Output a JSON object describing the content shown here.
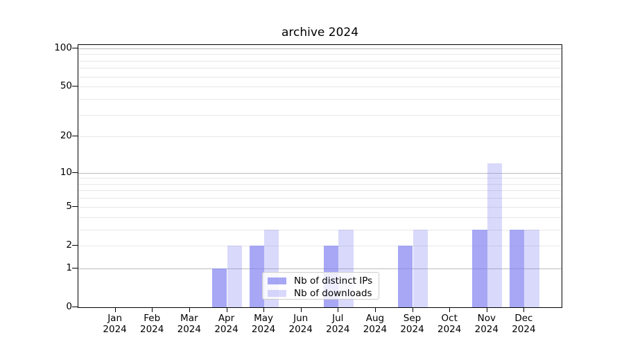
{
  "chart_data": {
    "type": "bar",
    "title": "archive 2024",
    "categories": [
      {
        "month": "Jan",
        "year": "2024"
      },
      {
        "month": "Feb",
        "year": "2024"
      },
      {
        "month": "Mar",
        "year": "2024"
      },
      {
        "month": "Apr",
        "year": "2024"
      },
      {
        "month": "May",
        "year": "2024"
      },
      {
        "month": "Jun",
        "year": "2024"
      },
      {
        "month": "Jul",
        "year": "2024"
      },
      {
        "month": "Aug",
        "year": "2024"
      },
      {
        "month": "Sep",
        "year": "2024"
      },
      {
        "month": "Oct",
        "year": "2024"
      },
      {
        "month": "Nov",
        "year": "2024"
      },
      {
        "month": "Dec",
        "year": "2024"
      }
    ],
    "series": [
      {
        "name": "Nb of distinct IPs",
        "color": "rgba(120,120,240,0.65)",
        "values": [
          0,
          0,
          0,
          1,
          2,
          0,
          2,
          0,
          2,
          0,
          3,
          3
        ]
      },
      {
        "name": "Nb of downloads",
        "color": "rgba(120,120,240,0.28)",
        "values": [
          0,
          0,
          0,
          2,
          3,
          0,
          3,
          0,
          3,
          0,
          12,
          3
        ]
      }
    ],
    "yscale": "log1p",
    "ylim": [
      0,
      106
    ],
    "yticks": [
      {
        "value": 0,
        "label": "0"
      },
      {
        "value": 1,
        "label": "1"
      },
      {
        "value": 2,
        "label": "2"
      },
      {
        "value": 5,
        "label": "5"
      },
      {
        "value": 10,
        "label": "10"
      },
      {
        "value": 20,
        "label": "20"
      },
      {
        "value": 50,
        "label": "50"
      },
      {
        "value": 100,
        "label": "100"
      }
    ],
    "grid": {
      "major_values": [
        1,
        10,
        100
      ],
      "minor_values": [
        2,
        3,
        4,
        5,
        6,
        7,
        8,
        9,
        20,
        30,
        40,
        50,
        60,
        70,
        80,
        90
      ],
      "major_color": "#bcbcbc",
      "minor_color": "#e7e7e7"
    },
    "legend": {
      "position": "lower-center"
    },
    "colors": {
      "spine": "#000000",
      "background": "#ffffff",
      "text": "#000000"
    }
  }
}
